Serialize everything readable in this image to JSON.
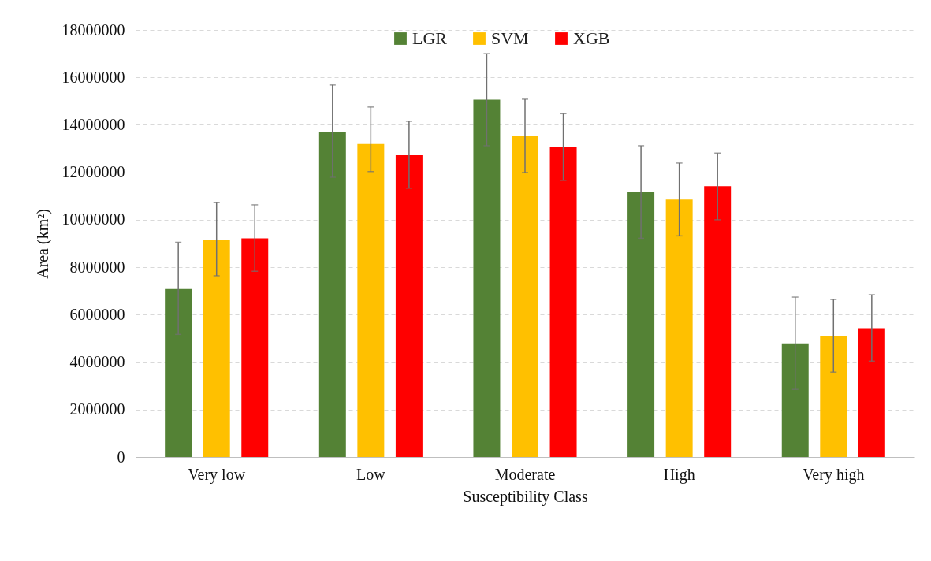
{
  "chart_data": {
    "type": "bar",
    "xlabel": "Susceptibility Class",
    "ylabel": "Area (km²)",
    "categories": [
      "Very low",
      "Low",
      "Moderate",
      "High",
      "Very high"
    ],
    "series": [
      {
        "name": "LGR",
        "color": "#548235",
        "values": [
          7080000,
          13720000,
          15060000,
          11160000,
          4790000
        ],
        "errors": [
          [
            5170000,
            9050000
          ],
          [
            11790000,
            15680000
          ],
          [
            13120000,
            17000000
          ],
          [
            9220000,
            13120000
          ],
          [
            2850000,
            6740000
          ]
        ]
      },
      {
        "name": "SVM",
        "color": "#ffc000",
        "values": [
          9170000,
          13190000,
          13520000,
          10850000,
          5110000
        ],
        "errors": [
          [
            7640000,
            10720000
          ],
          [
            12030000,
            14750000
          ],
          [
            11990000,
            15080000
          ],
          [
            9320000,
            12390000
          ],
          [
            3580000,
            6640000
          ]
        ]
      },
      {
        "name": "XGB",
        "color": "#ff0000",
        "values": [
          9220000,
          12720000,
          13060000,
          11420000,
          5430000
        ],
        "errors": [
          [
            7830000,
            10630000
          ],
          [
            11330000,
            14150000
          ],
          [
            11660000,
            14470000
          ],
          [
            10000000,
            12810000
          ],
          [
            4040000,
            6840000
          ]
        ]
      }
    ],
    "ylim": [
      0,
      18000000
    ],
    "yticks": [
      0,
      2000000,
      4000000,
      6000000,
      8000000,
      10000000,
      12000000,
      14000000,
      16000000,
      18000000
    ],
    "grid": "y",
    "legend": "top"
  }
}
